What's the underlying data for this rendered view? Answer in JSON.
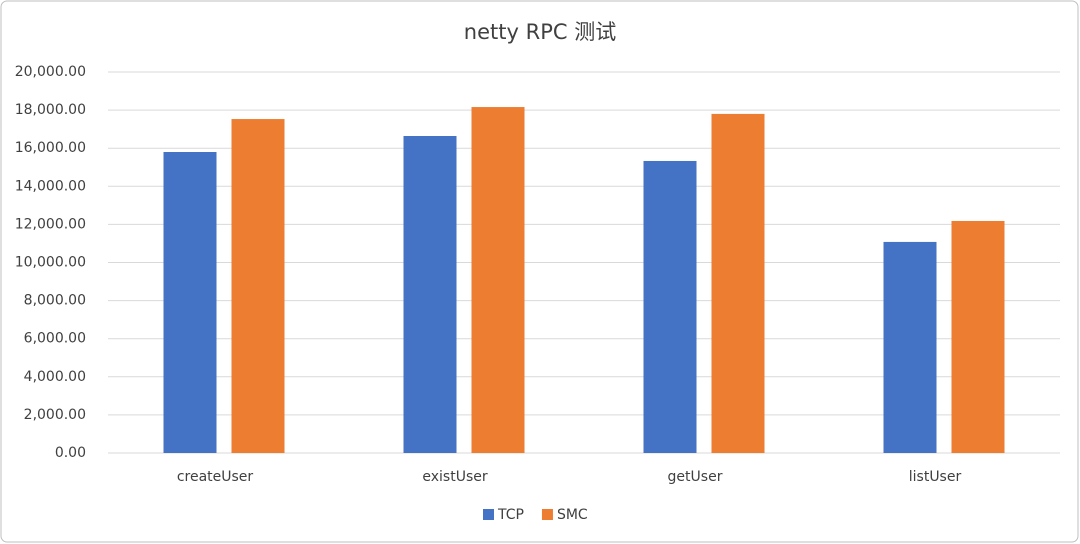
{
  "chart_data": {
    "type": "bar",
    "title": "netty RPC 测试",
    "categories": [
      "createUser",
      "existUser",
      "getUser",
      "listUser"
    ],
    "series": [
      {
        "name": "TCP",
        "color": "#4472c4",
        "values": [
          15800,
          16640,
          15330,
          11080
        ]
      },
      {
        "name": "SMC",
        "color": "#ed7d31",
        "values": [
          17530,
          18160,
          17800,
          12180
        ]
      }
    ],
    "ylim": [
      0,
      20000
    ],
    "yticks": [
      {
        "value": 0,
        "label": "0.00"
      },
      {
        "value": 2000,
        "label": "2,000.00"
      },
      {
        "value": 4000,
        "label": "4,000.00"
      },
      {
        "value": 6000,
        "label": "6,000.00"
      },
      {
        "value": 8000,
        "label": "8,000.00"
      },
      {
        "value": 10000,
        "label": "10,000.00"
      },
      {
        "value": 12000,
        "label": "12,000.00"
      },
      {
        "value": 14000,
        "label": "14,000.00"
      },
      {
        "value": 16000,
        "label": "16,000.00"
      },
      {
        "value": 18000,
        "label": "18,000.00"
      },
      {
        "value": 20000,
        "label": "20,000.00"
      }
    ],
    "grid": true,
    "legend": "bottom"
  }
}
